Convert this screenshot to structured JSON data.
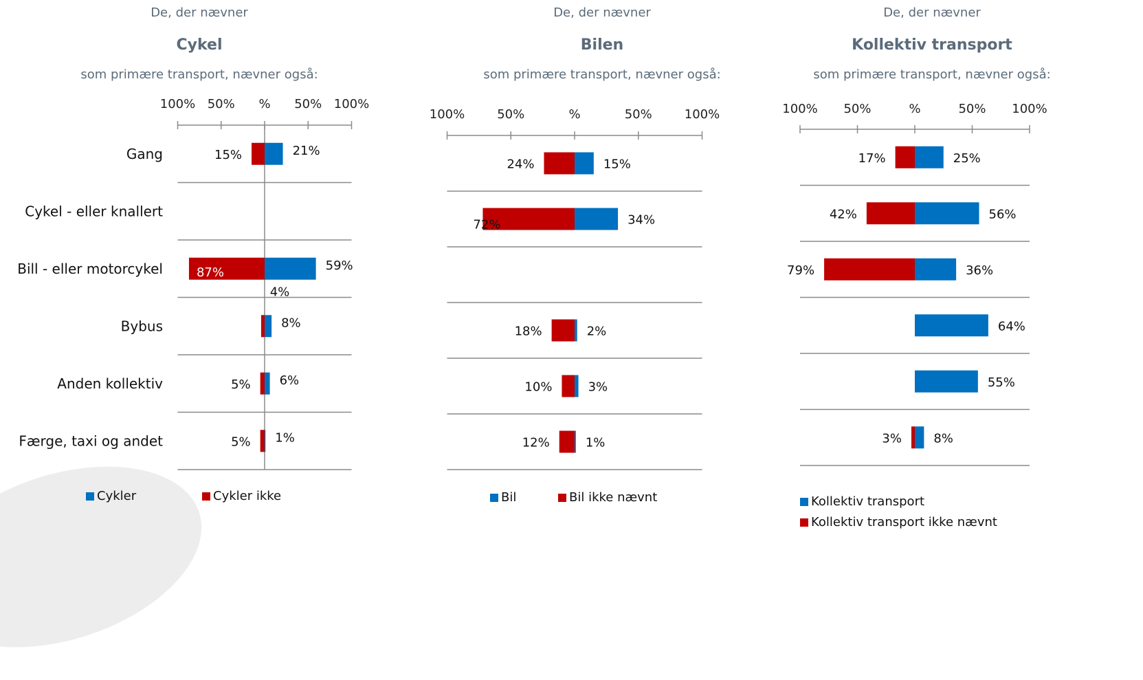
{
  "colors": {
    "positive": "#0070c0",
    "negative": "#c00000",
    "header_text": "#5b6b7a"
  },
  "chart_data": [
    {
      "type": "bar",
      "orientation": "horizontal-diverging",
      "pre_title": "De, der nævner",
      "title": "Cykel",
      "subtitle": "som primære transport, nævner også:",
      "categories": [
        "Gang",
        "Cykel - eller knallert",
        "Bill - eller motorcykel",
        "Bybus",
        "Anden kollektiv",
        "Færge, taxi og andet"
      ],
      "xlim": [
        -100,
        100
      ],
      "tick_labels": [
        "100%",
        "50%",
        "%",
        "50%",
        "100%"
      ],
      "series": [
        {
          "name": "Cykler",
          "side": "right",
          "values": [
            21,
            null,
            59,
            8,
            6,
            1
          ],
          "labels": [
            "21%",
            "",
            "59%",
            "8%",
            "6%",
            "1%"
          ]
        },
        {
          "name": "Cykler ikke",
          "side": "left",
          "values": [
            15,
            null,
            87,
            4,
            5,
            5
          ],
          "labels": [
            "15%",
            "",
            "87%",
            "4%",
            "5%",
            "5%"
          ]
        }
      ],
      "legend": [
        "Cykler",
        "Cykler ikke"
      ],
      "legend_position": "bottom"
    },
    {
      "type": "bar",
      "orientation": "horizontal-diverging",
      "pre_title": "De, der nævner",
      "title": "Bilen",
      "subtitle": "som primære transport, nævner også:",
      "categories": [
        "Gang",
        "Cykel - eller knallert",
        "Bill - eller motorcykel",
        "Bybus",
        "Anden kollektiv",
        "Færge, taxi og andet"
      ],
      "xlim": [
        -100,
        100
      ],
      "tick_labels": [
        "100%",
        "50%",
        "%",
        "50%",
        "100%"
      ],
      "series": [
        {
          "name": "Bil",
          "side": "right",
          "values": [
            15,
            34,
            null,
            2,
            3,
            1
          ],
          "labels": [
            "15%",
            "34%",
            "",
            "2%",
            "3%",
            "1%"
          ]
        },
        {
          "name": "Bil ikke nævnt",
          "side": "left",
          "values": [
            24,
            72,
            null,
            18,
            10,
            12
          ],
          "labels": [
            "24%",
            "72%",
            "",
            "18%",
            "10%",
            "12%"
          ]
        }
      ],
      "legend": [
        "Bil",
        "Bil ikke nævnt"
      ],
      "legend_position": "bottom"
    },
    {
      "type": "bar",
      "orientation": "horizontal-diverging",
      "pre_title": "De, der nævner",
      "title": "Kollektiv transport",
      "subtitle": "som primære transport, nævner også:",
      "categories": [
        "Gang",
        "Cykel - eller knallert",
        "Bill - eller motorcykel",
        "Bybus",
        "Anden kollektiv",
        "Færge, taxi og andet"
      ],
      "xlim": [
        -100,
        100
      ],
      "tick_labels": [
        "100%",
        "50%",
        "%",
        "50%",
        "100%"
      ],
      "series": [
        {
          "name": "Kollektiv transport",
          "side": "right",
          "values": [
            25,
            56,
            36,
            64,
            55,
            8
          ],
          "labels": [
            "25%",
            "56%",
            "36%",
            "64%",
            "55%",
            "8%"
          ]
        },
        {
          "name": "Kollektiv transport ikke nævnt",
          "side": "left",
          "values": [
            17,
            42,
            79,
            null,
            null,
            3
          ],
          "labels": [
            "17%",
            "42%",
            "79%",
            "",
            "",
            "3%"
          ]
        }
      ],
      "legend": [
        "Kollektiv transport",
        "Kollektiv transport ikke nævnt"
      ],
      "legend_position": "bottom"
    }
  ]
}
